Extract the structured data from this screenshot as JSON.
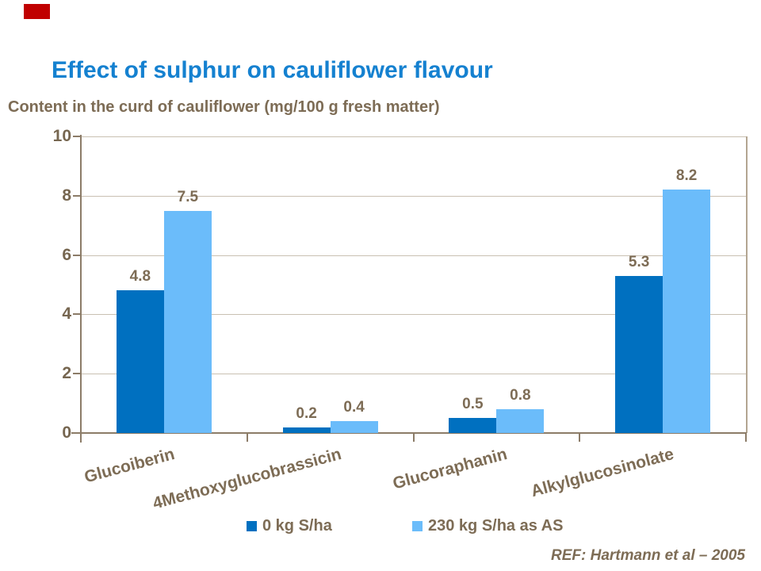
{
  "slide": {
    "title": "Effect of sulphur on cauliflower flavour",
    "subtitle": "Content in the curd of cauliflower (mg/100 g fresh matter)",
    "reference": "REF: Hartmann et al – 2005",
    "colors": {
      "title_blue": "#1581d0",
      "text_brown": "#7d6c55",
      "axis_brown": "#8c7c68",
      "gridline_tan": "#c9c0b2",
      "corner_mark_red": "#c00000",
      "series_dark_blue": "#0070c0",
      "series_light_blue": "#6bbcfa"
    }
  },
  "chart_data": {
    "type": "bar",
    "title": "Content in the curd of cauliflower (mg/100 g fresh matter)",
    "categories": [
      "Glucoiberin",
      "4Methoxyglucobrassicin",
      "Glucoraphanin",
      "Alkylglucosinolate"
    ],
    "series": [
      {
        "name": "0 kg S/ha",
        "color": "#0070c0",
        "values": [
          4.8,
          0.2,
          0.5,
          5.3
        ]
      },
      {
        "name": "230 kg S/ha as AS",
        "color": "#6bbcfa",
        "values": [
          7.5,
          0.4,
          0.8,
          8.2
        ]
      }
    ],
    "ylabel": "",
    "xlabel": "",
    "ylim": [
      0,
      10
    ],
    "yticks": [
      0,
      2,
      4,
      6,
      8,
      10
    ],
    "grid": "horizontal",
    "legend_position": "bottom",
    "data_labels": true
  }
}
